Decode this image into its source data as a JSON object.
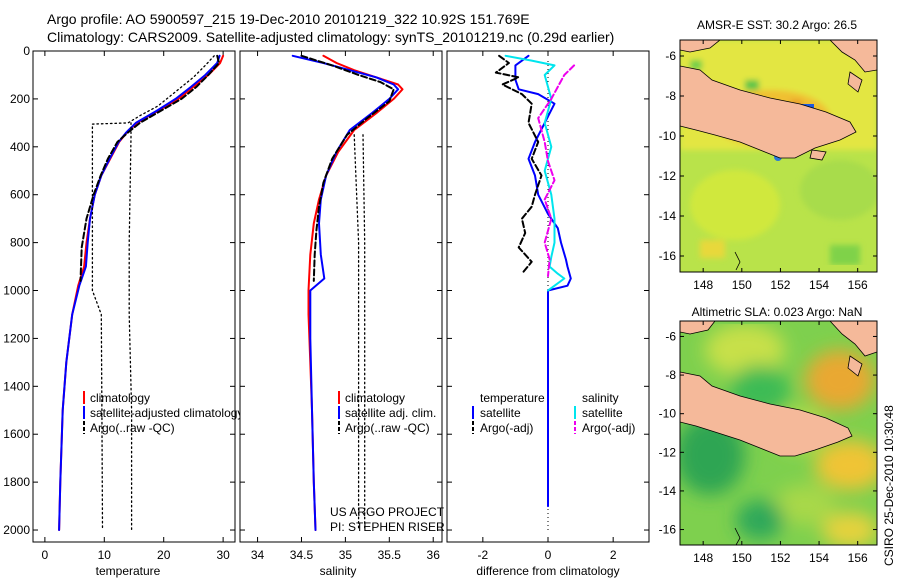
{
  "header": {
    "line1": "Argo profile: AO 5900597_215 19-Dec-2010 20101219_322 10.92S 151.769E",
    "line2": "Climatology: CARS2009. Satellite-adjusted climatology: synTS_20101219.nc (0.29d earlier)"
  },
  "footer": {
    "credit": "CSIRO 25-Dec-2010 10:30:48",
    "project_line1": "US ARGO PROJECT",
    "project_line2": "PI: STEPHEN RISER"
  },
  "colors": {
    "climatology": "#ff0000",
    "satellite": "#0000ff",
    "argo": "#000000",
    "sal_satellite": "#00e5ee",
    "sal_argo": "#ee00ee",
    "land": "#f5b99a"
  },
  "depth_axis": {
    "ylim": [
      0,
      2050
    ],
    "ticks": [
      0,
      200,
      400,
      600,
      800,
      1000,
      1200,
      1400,
      1600,
      1800,
      2000
    ],
    "tick_labels": [
      "0",
      "200",
      "400",
      "600",
      "800",
      "1000",
      "1200",
      "1400",
      "1600",
      "1800",
      "2000"
    ]
  },
  "chart_data": [
    {
      "type": "line",
      "id": "temperature",
      "xlabel": "temperature",
      "xlim": [
        -2,
        32
      ],
      "xticks": [
        0,
        10,
        20,
        30
      ],
      "xtick_labels": [
        "0",
        "10",
        "20",
        "30"
      ],
      "legend": [
        "climatology",
        "satellite-adjusted climatology",
        "Argo(..raw -QC)"
      ],
      "series": [
        {
          "name": "climatology",
          "style": "solid",
          "color": "#ff0000",
          "x": [
            30.0,
            29.5,
            27.5,
            25.0,
            22.5,
            19.0,
            15.5,
            13.8,
            12.5,
            11.0,
            9.5,
            8.4,
            7.6,
            7.0,
            6.6,
            5.6,
            4.6,
            3.6,
            3.0,
            2.6,
            2.4
          ],
          "y": [
            20,
            50,
            100,
            150,
            200,
            250,
            300,
            340,
            380,
            450,
            520,
            600,
            700,
            800,
            900,
            980,
            1100,
            1300,
            1500,
            1800,
            2000
          ]
        },
        {
          "name": "satellite",
          "style": "solid",
          "color": "#0000ff",
          "x": [
            29.4,
            29.0,
            27.0,
            24.6,
            22.0,
            18.8,
            15.3,
            13.7,
            12.4,
            10.9,
            9.5,
            8.4,
            7.6,
            7.2,
            6.9,
            5.8,
            4.6,
            3.6,
            3.0,
            2.6,
            2.4
          ],
          "y": [
            20,
            50,
            100,
            150,
            200,
            250,
            300,
            340,
            380,
            450,
            520,
            600,
            700,
            800,
            900,
            980,
            1100,
            1300,
            1500,
            1800,
            2000
          ]
        },
        {
          "name": "Argo",
          "style": "dashed",
          "color": "#000000",
          "x": [
            29.0,
            29.3,
            27.5,
            25.5,
            23.0,
            19.5,
            16.0,
            14.0,
            12.2,
            10.6,
            9.4,
            8.2,
            7.0,
            6.2,
            6.0
          ],
          "y": [
            20,
            50,
            100,
            150,
            200,
            250,
            300,
            340,
            380,
            450,
            520,
            600,
            700,
            820,
            960
          ]
        },
        {
          "name": "raw",
          "style": "dotted",
          "color": "#000000",
          "x": [
            28.5,
            27.0,
            25.0,
            22.0,
            19.0,
            16.0,
            14.0,
            8.0,
            8.0,
            9.5,
            9.6,
            9.7
          ],
          "y": [
            20,
            60,
            110,
            170,
            230,
            270,
            300,
            305,
            1000,
            1100,
            1500,
            2000
          ]
        },
        {
          "name": "raw-qc",
          "style": "dotted",
          "color": "#000000",
          "x": [
            14.5,
            14.5,
            14.2,
            14.2,
            14.6,
            14.6
          ],
          "y": [
            300,
            360,
            800,
            1100,
            1500,
            2000
          ]
        }
      ]
    },
    {
      "type": "line",
      "id": "salinity",
      "xlabel": "salinity",
      "xlim": [
        33.8,
        36.1
      ],
      "xticks": [
        34,
        34.5,
        35,
        35.5,
        36
      ],
      "xtick_labels": [
        "34",
        "34.5",
        "35",
        "35.5",
        "36"
      ],
      "legend": [
        "climatology",
        "satellite adj. clim.",
        "Argo(..raw -QC)"
      ],
      "series": [
        {
          "name": "climatology",
          "style": "solid",
          "color": "#ff0000",
          "x": [
            34.75,
            34.9,
            35.1,
            35.35,
            35.6,
            35.65,
            35.55,
            35.35,
            35.1,
            34.92,
            34.78,
            34.7,
            34.64,
            34.6,
            34.58,
            34.58,
            34.6,
            34.62,
            34.64,
            34.66
          ],
          "y": [
            20,
            50,
            80,
            110,
            140,
            160,
            200,
            260,
            330,
            420,
            520,
            620,
            720,
            850,
            1000,
            1100,
            1300,
            1500,
            1800,
            2000
          ]
        },
        {
          "name": "satellite",
          "style": "solid",
          "color": "#0000ff",
          "x": [
            34.4,
            34.75,
            35.05,
            35.35,
            35.55,
            35.6,
            35.5,
            35.3,
            35.05,
            34.9,
            34.78,
            34.72,
            34.7,
            34.72,
            34.76,
            34.6,
            34.6,
            34.62,
            34.64,
            34.66
          ],
          "y": [
            20,
            50,
            80,
            110,
            140,
            160,
            200,
            260,
            330,
            420,
            520,
            620,
            720,
            850,
            950,
            1000,
            1200,
            1500,
            1800,
            2000
          ]
        },
        {
          "name": "Argo",
          "style": "dashed",
          "color": "#000000",
          "x": [
            34.5,
            34.85,
            35.15,
            35.4,
            35.55,
            35.5,
            35.25,
            35.02,
            34.85,
            34.75,
            34.7,
            34.67,
            34.65,
            34.64
          ],
          "y": [
            20,
            60,
            100,
            130,
            160,
            210,
            280,
            350,
            450,
            550,
            650,
            750,
            850,
            960
          ]
        },
        {
          "name": "raw",
          "style": "dotted",
          "color": "#000000",
          "x": [
            35.1,
            35.15,
            35.15,
            35.15
          ],
          "y": [
            350,
            800,
            1500,
            2000
          ]
        },
        {
          "name": "raw-qc",
          "style": "dotted",
          "color": "#000000",
          "x": [
            35.2,
            35.22,
            35.22,
            35.22
          ],
          "y": [
            350,
            800,
            1500,
            2000
          ]
        }
      ]
    },
    {
      "type": "line",
      "id": "difference",
      "xlabel": "difference from climatology",
      "xlim": [
        -3.1,
        3.1
      ],
      "xticks": [
        -2,
        0,
        2
      ],
      "xtick_labels": [
        "-2",
        "0",
        "2"
      ],
      "legend_temperature": {
        "title": "temperature",
        "satellite": "satellite",
        "argo": "Argo(-adj)"
      },
      "legend_salinity": {
        "title": "salinity",
        "satellite": "satellite",
        "argo": "Argo(-adj)"
      },
      "series": [
        {
          "name": "temperature satellite",
          "style": "solid",
          "color": "#0000ff",
          "x": [
            -0.6,
            -1.0,
            -1.0,
            -0.9,
            -0.3,
            0.2,
            -0.1,
            -0.4,
            -0.6,
            -0.4,
            -0.3,
            0.0,
            0.3,
            0.4,
            0.55,
            0.6,
            0.7,
            0.6,
            0.0,
            0.0,
            0.0,
            0.0
          ],
          "y": [
            20,
            60,
            120,
            160,
            180,
            220,
            300,
            380,
            450,
            520,
            600,
            680,
            740,
            800,
            870,
            900,
            950,
            980,
            1000,
            1200,
            1600,
            1900
          ]
        },
        {
          "name": "temperature Argo",
          "style": "dashed",
          "color": "#000000",
          "x": [
            -1.5,
            -1.2,
            -1.6,
            -0.9,
            -1.4,
            -0.8,
            -0.5,
            -0.6,
            -0.3,
            -0.5,
            -0.2,
            -0.4,
            -0.5,
            -0.8,
            -0.7,
            -0.9,
            -0.5,
            -0.8
          ],
          "y": [
            20,
            50,
            90,
            110,
            140,
            180,
            220,
            300,
            380,
            450,
            520,
            600,
            650,
            700,
            760,
            820,
            880,
            930
          ]
        },
        {
          "name": "salinity satellite",
          "style": "solid",
          "color": "#00e5ee",
          "x": [
            -1.3,
            -0.5,
            0.2,
            -0.1,
            0.1,
            -0.1,
            0.1,
            -0.1,
            0.1,
            0.2,
            0.2,
            0.1,
            0.05,
            0.3,
            0.5,
            0.3,
            0.1,
            0.0
          ],
          "y": [
            20,
            40,
            60,
            100,
            200,
            300,
            400,
            500,
            600,
            700,
            800,
            860,
            900,
            930,
            950,
            970,
            990,
            1000
          ]
        },
        {
          "name": "salinity Argo",
          "style": "dashed",
          "color": "#ee00ee",
          "x": [
            0.8,
            0.5,
            0.3,
            0.1,
            -0.3,
            -0.1,
            0.0,
            0.2,
            -0.1,
            0.1,
            -0.1,
            0.05,
            0.0
          ],
          "y": [
            60,
            100,
            150,
            200,
            280,
            380,
            460,
            540,
            620,
            700,
            800,
            870,
            940
          ]
        }
      ]
    }
  ],
  "maps": [
    {
      "title": "AMSR-E SST: 30.2 Argo: 26.5",
      "type": "heatmap",
      "xlim": [
        146.8,
        157.0
      ],
      "ylim": [
        -16.8,
        -5.2
      ],
      "xticks": [
        148,
        150,
        152,
        154,
        156
      ],
      "xtick_labels": [
        "148",
        "150",
        "152",
        "154",
        "156"
      ],
      "yticks": [
        -6,
        -8,
        -10,
        -12,
        -14,
        -16
      ],
      "ytick_labels": [
        "-6",
        "-8",
        "-10",
        "-12",
        "-14",
        "-16"
      ]
    },
    {
      "title": "Altimetric SLA: 0.023 Argo: NaN",
      "type": "heatmap",
      "xlim": [
        146.8,
        157.0
      ],
      "ylim": [
        -16.8,
        -5.2
      ],
      "xticks": [
        148,
        150,
        152,
        154,
        156
      ],
      "xtick_labels": [
        "148",
        "150",
        "152",
        "154",
        "156"
      ],
      "yticks": [
        -6,
        -8,
        -10,
        -12,
        -14,
        -16
      ],
      "ytick_labels": [
        "-6",
        "-8",
        "-10",
        "-12",
        "-14",
        "-16"
      ]
    }
  ]
}
